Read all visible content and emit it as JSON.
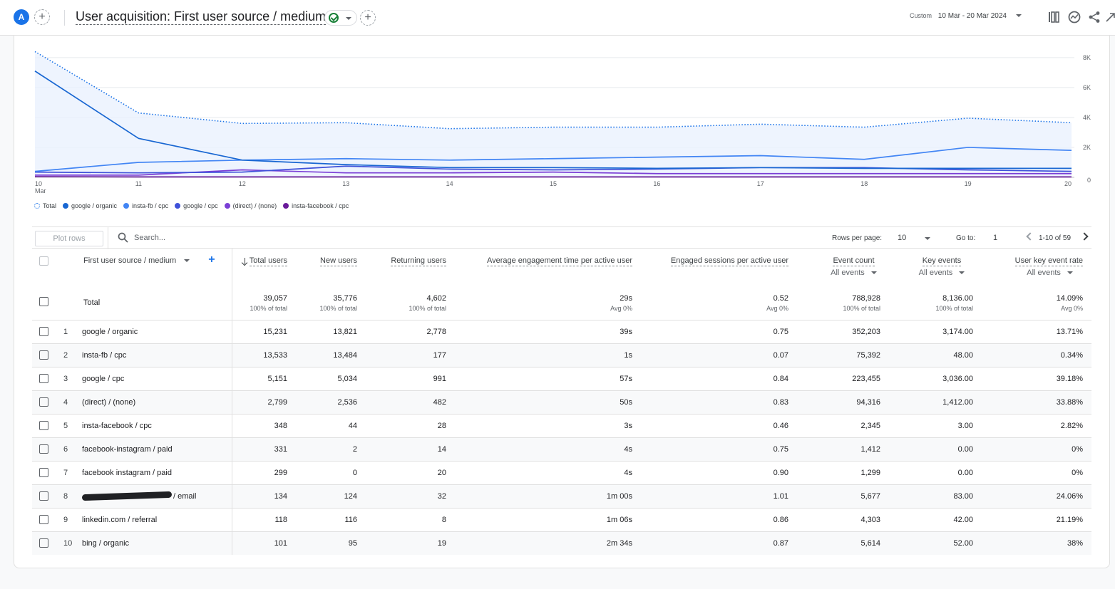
{
  "header": {
    "avatar_letter": "A",
    "title": "User acquisition: First user source / medium",
    "date_label": "Custom",
    "date_range": "10 Mar - 20 Mar 2024",
    "icons": [
      "compare-icon",
      "insights-icon",
      "share-icon",
      "expand-icon"
    ]
  },
  "chart_data": {
    "type": "line",
    "x": [
      "10",
      "11",
      "12",
      "13",
      "14",
      "15",
      "16",
      "17",
      "18",
      "19",
      "20"
    ],
    "x_sublabel": "Mar",
    "y_ticks": [
      "0",
      "2K",
      "4K",
      "6K",
      "8K"
    ],
    "ylim": [
      0,
      8800
    ],
    "grid": true,
    "legend_position": "bottom-left",
    "series": [
      {
        "name": "Total",
        "color": "#1a73e8",
        "style": "dotted",
        "values": [
          8400,
          4300,
          3600,
          3650,
          3250,
          3350,
          3350,
          3550,
          3350,
          3950,
          3650
        ]
      },
      {
        "name": "google / organic",
        "color": "#1967d2",
        "style": "solid",
        "values": [
          7100,
          2600,
          1150,
          850,
          650,
          650,
          600,
          650,
          600,
          600,
          600
        ]
      },
      {
        "name": "insta-fb / cpc",
        "color": "#4285f4",
        "style": "solid",
        "values": [
          400,
          1000,
          1150,
          1250,
          1150,
          1250,
          1350,
          1450,
          1200,
          2000,
          1800
        ]
      },
      {
        "name": "google / cpc",
        "color": "#3f51d9",
        "style": "solid",
        "values": [
          350,
          300,
          350,
          750,
          550,
          500,
          550,
          650,
          650,
          500,
          400
        ]
      },
      {
        "name": "(direct) / (none)",
        "color": "#7b3fd6",
        "style": "solid",
        "values": [
          150,
          150,
          500,
          300,
          300,
          350,
          250,
          250,
          250,
          250,
          250
        ]
      },
      {
        "name": "insta-facebook / cpc",
        "color": "#6a1b9a",
        "style": "solid",
        "values": [
          50,
          30,
          30,
          30,
          30,
          30,
          30,
          30,
          30,
          30,
          30
        ]
      }
    ]
  },
  "toolbar": {
    "plot_rows": "Plot rows",
    "search_placeholder": "Search...",
    "rows_per_page_label": "Rows per page:",
    "rows_per_page": "10",
    "goto_label": "Go to:",
    "goto_value": "1",
    "pager": "1-10 of 59"
  },
  "table": {
    "dimension_header": "First user source / medium",
    "columns": [
      {
        "label": "Total users",
        "sub": ""
      },
      {
        "label": "New users",
        "sub": ""
      },
      {
        "label": "Returning users",
        "sub": ""
      },
      {
        "label": "Average engagement time per active user",
        "sub": ""
      },
      {
        "label": "Engaged sessions per active user",
        "sub": ""
      },
      {
        "label": "Event count",
        "sub": "All events"
      },
      {
        "label": "Key events",
        "sub": "All events"
      },
      {
        "label": "User key event rate",
        "sub": "All events"
      }
    ],
    "total": {
      "label": "Total",
      "values": [
        "39,057",
        "35,776",
        "4,602",
        "29s",
        "0.52",
        "788,928",
        "8,136.00",
        "14.09%"
      ],
      "subs": [
        "100% of total",
        "100% of total",
        "100% of total",
        "Avg 0%",
        "Avg 0%",
        "100% of total",
        "100% of total",
        "Avg 0%"
      ]
    },
    "rows": [
      {
        "rank": "1",
        "name": "google / organic",
        "values": [
          "15,231",
          "13,821",
          "2,778",
          "39s",
          "0.75",
          "352,203",
          "3,174.00",
          "13.71%"
        ]
      },
      {
        "rank": "2",
        "name": "insta-fb / cpc",
        "values": [
          "13,533",
          "13,484",
          "177",
          "1s",
          "0.07",
          "75,392",
          "48.00",
          "0.34%"
        ]
      },
      {
        "rank": "3",
        "name": "google / cpc",
        "values": [
          "5,151",
          "5,034",
          "991",
          "57s",
          "0.84",
          "223,455",
          "3,036.00",
          "39.18%"
        ]
      },
      {
        "rank": "4",
        "name": "(direct) / (none)",
        "values": [
          "2,799",
          "2,536",
          "482",
          "50s",
          "0.83",
          "94,316",
          "1,412.00",
          "33.88%"
        ]
      },
      {
        "rank": "5",
        "name": "insta-facebook / cpc",
        "values": [
          "348",
          "44",
          "28",
          "3s",
          "0.46",
          "2,345",
          "3.00",
          "2.82%"
        ]
      },
      {
        "rank": "6",
        "name": "facebook-instagram / paid",
        "values": [
          "331",
          "2",
          "14",
          "4s",
          "0.75",
          "1,412",
          "0.00",
          "0%"
        ]
      },
      {
        "rank": "7",
        "name": "facebook instagram / paid",
        "values": [
          "299",
          "0",
          "20",
          "4s",
          "0.90",
          "1,299",
          "0.00",
          "0%"
        ]
      },
      {
        "rank": "8",
        "name": "/ email",
        "redacted": true,
        "values": [
          "134",
          "124",
          "32",
          "1m 00s",
          "1.01",
          "5,677",
          "83.00",
          "24.06%"
        ]
      },
      {
        "rank": "9",
        "name": "linkedin.com / referral",
        "values": [
          "118",
          "116",
          "8",
          "1m 06s",
          "0.86",
          "4,303",
          "42.00",
          "21.19%"
        ]
      },
      {
        "rank": "10",
        "name": "bing / organic",
        "values": [
          "101",
          "95",
          "19",
          "2m 34s",
          "0.87",
          "5,614",
          "52.00",
          "38%"
        ]
      }
    ]
  }
}
